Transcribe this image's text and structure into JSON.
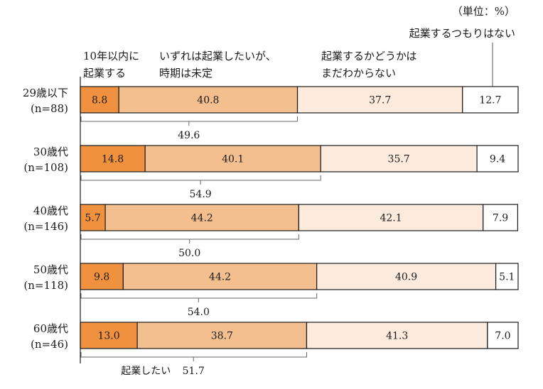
{
  "chart_data": {
    "type": "bar",
    "orientation": "horizontal",
    "stacked": true,
    "unit_label": "（単位：%）",
    "categories": [
      {
        "name": "29歳以下",
        "n": "(n=88)"
      },
      {
        "name": "30歳代",
        "n": "(n=108)"
      },
      {
        "name": "40歳代",
        "n": "(n=146)"
      },
      {
        "name": "50歳代",
        "n": "(n=118)"
      },
      {
        "name": "60歳代",
        "n": "(n=46)"
      }
    ],
    "series": [
      {
        "name": "10年以内に起業する",
        "name_lines": [
          "10年以内に",
          "起業する"
        ],
        "color": "#f0913f",
        "values": [
          8.8,
          14.8,
          5.7,
          9.8,
          13.0
        ],
        "labels": [
          "8.8",
          "14.8",
          "5.7",
          "9.8",
          "13.0"
        ]
      },
      {
        "name": "いずれは起業したいが、時期は未定",
        "name_lines": [
          "いずれは起業したいが、",
          "時期は未定"
        ],
        "color": "#f4bf8e",
        "values": [
          40.8,
          40.1,
          44.2,
          44.2,
          38.7
        ],
        "labels": [
          "40.8",
          "40.1",
          "44.2",
          "44.2",
          "38.7"
        ]
      },
      {
        "name": "起業するかどうかはまだわからない",
        "name_lines": [
          "起業するかどうかは",
          "まだわからない"
        ],
        "color": "#fcebdc",
        "values": [
          37.7,
          35.7,
          42.1,
          40.9,
          41.3
        ],
        "labels": [
          "37.7",
          "35.7",
          "42.1",
          "40.9",
          "41.3"
        ]
      },
      {
        "name": "起業するつもりはない",
        "name_lines": [
          "起業するつもりはない"
        ],
        "color": "#ffffff",
        "values": [
          12.7,
          9.4,
          7.9,
          5.1,
          7.0
        ],
        "labels": [
          "12.7",
          "9.4",
          "7.9",
          "5.1",
          "7.0"
        ]
      }
    ],
    "subtotal": {
      "label": "起業したい",
      "values": [
        49.6,
        54.9,
        50.0,
        54.0,
        51.7
      ],
      "labels": [
        "49.6",
        "54.9",
        "50.0",
        "54.0",
        "51.7"
      ]
    },
    "xlim": [
      0,
      100
    ],
    "grid": false,
    "legend": "top"
  }
}
